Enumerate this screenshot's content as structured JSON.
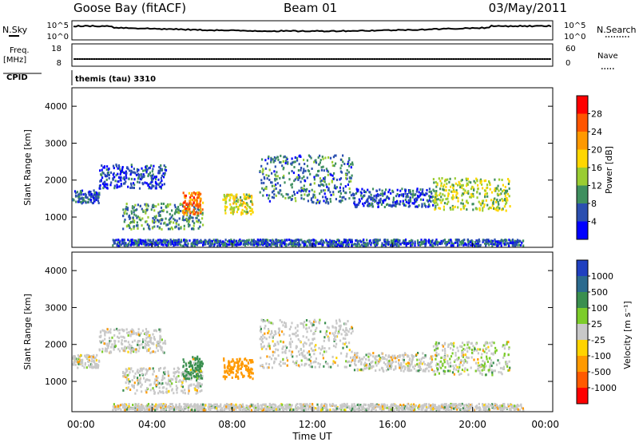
{
  "header": {
    "station": "Goose Bay (fitACF)",
    "beam": "Beam 01",
    "date": "03/May/2011"
  },
  "status_panels": {
    "nsky_label": "N.Sky",
    "nsearch_label": "N.Search",
    "count_ticks": [
      "10^5",
      "10^0"
    ],
    "freq_label_line1": "Freq.",
    "freq_label_line2": "[MHz]",
    "freq_ticks": [
      "18",
      "8"
    ],
    "nave_label": "Nave",
    "nave_ticks": [
      "60",
      "0"
    ],
    "cpid_label": "CPID",
    "cpid_value": "themis (tau) 3310"
  },
  "chart_data": [
    {
      "type": "heatmap",
      "title": "",
      "xlabel": "",
      "ylabel": "Slant Range [km]",
      "xlim": [
        "00:00",
        "24:00"
      ],
      "ylim": [
        180,
        4500
      ],
      "x_ticks": [
        "00:00",
        "04:00",
        "08:00",
        "12:00",
        "16:00",
        "20:00",
        "00:00"
      ],
      "y_ticks": [
        1000,
        2000,
        3000,
        4000
      ],
      "grid": false,
      "colorbar": {
        "label": "Power [dB]",
        "tick_labels": [
          "4",
          "8",
          "12",
          "16",
          "20",
          "24",
          "28"
        ],
        "colors": [
          "#0000ff",
          "#2b4fb0",
          "#3f8f5f",
          "#9acd32",
          "#ffd700",
          "#ff9900",
          "#ff5500",
          "#ff0000"
        ]
      },
      "echo_regions": [
        {
          "start": "00:00",
          "end": "01:20",
          "range_km": [
            1400,
            1750
          ],
          "dominant_value_dB": 6
        },
        {
          "start": "01:20",
          "end": "04:40",
          "range_km": [
            1800,
            2450
          ],
          "dominant_value_dB": 5
        },
        {
          "start": "02:30",
          "end": "06:30",
          "range_km": [
            700,
            1400
          ],
          "dominant_value_dB": 10
        },
        {
          "start": "05:30",
          "end": "06:30",
          "range_km": [
            1100,
            1700
          ],
          "dominant_value_dB": 24
        },
        {
          "start": "07:30",
          "end": "09:00",
          "range_km": [
            1100,
            1650
          ],
          "dominant_value_dB": 16
        },
        {
          "start": "09:20",
          "end": "14:00",
          "range_km": [
            1400,
            2700
          ],
          "dominant_value_dB": 8
        },
        {
          "start": "14:00",
          "end": "18:00",
          "range_km": [
            1300,
            1800
          ],
          "dominant_value_dB": 6
        },
        {
          "start": "18:00",
          "end": "21:50",
          "range_km": [
            1200,
            2100
          ],
          "dominant_value_dB": 14
        },
        {
          "start": "02:00",
          "end": "22:30",
          "range_km": [
            250,
            420
          ],
          "dominant_value_dB": 6
        }
      ]
    },
    {
      "type": "heatmap",
      "title": "",
      "xlabel": "Time UT",
      "ylabel": "Slant Range [km]",
      "xlim": [
        "00:00",
        "24:00"
      ],
      "ylim": [
        180,
        4500
      ],
      "x_ticks": [
        "00:00",
        "04:00",
        "08:00",
        "12:00",
        "16:00",
        "20:00",
        "00:00"
      ],
      "y_ticks": [
        1000,
        2000,
        3000,
        4000
      ],
      "grid": false,
      "colorbar": {
        "label": "Velocity [m s⁻¹]",
        "tick_labels": [
          "1000",
          "500",
          "100",
          "25",
          "-25",
          "-100",
          "-500",
          "-1000"
        ],
        "colors": [
          "#2040c0",
          "#2b6a8e",
          "#3a8f4f",
          "#7ccc2a",
          "#c8c8c8",
          "#ffd400",
          "#ff9a00",
          "#ff5a00",
          "#ff0000"
        ]
      },
      "echo_regions": [
        {
          "start": "00:00",
          "end": "01:20",
          "range_km": [
            1400,
            1750
          ],
          "dominant_value_ms": 0
        },
        {
          "start": "01:20",
          "end": "04:40",
          "range_km": [
            1800,
            2450
          ],
          "dominant_value_ms": 0
        },
        {
          "start": "02:30",
          "end": "06:30",
          "range_km": [
            700,
            1400
          ],
          "dominant_value_ms": 0
        },
        {
          "start": "05:30",
          "end": "06:30",
          "range_km": [
            1100,
            1700
          ],
          "dominant_value_ms": 120
        },
        {
          "start": "07:30",
          "end": "09:00",
          "range_km": [
            1100,
            1650
          ],
          "dominant_value_ms": -300
        },
        {
          "start": "09:20",
          "end": "14:00",
          "range_km": [
            1400,
            2700
          ],
          "dominant_value_ms": 0
        },
        {
          "start": "14:00",
          "end": "18:00",
          "range_km": [
            1300,
            1800
          ],
          "dominant_value_ms": 0
        },
        {
          "start": "18:00",
          "end": "21:50",
          "range_km": [
            1200,
            2100
          ],
          "dominant_value_ms": 20
        },
        {
          "start": "02:00",
          "end": "22:30",
          "range_km": [
            250,
            420
          ],
          "dominant_value_ms": 0
        }
      ]
    }
  ]
}
